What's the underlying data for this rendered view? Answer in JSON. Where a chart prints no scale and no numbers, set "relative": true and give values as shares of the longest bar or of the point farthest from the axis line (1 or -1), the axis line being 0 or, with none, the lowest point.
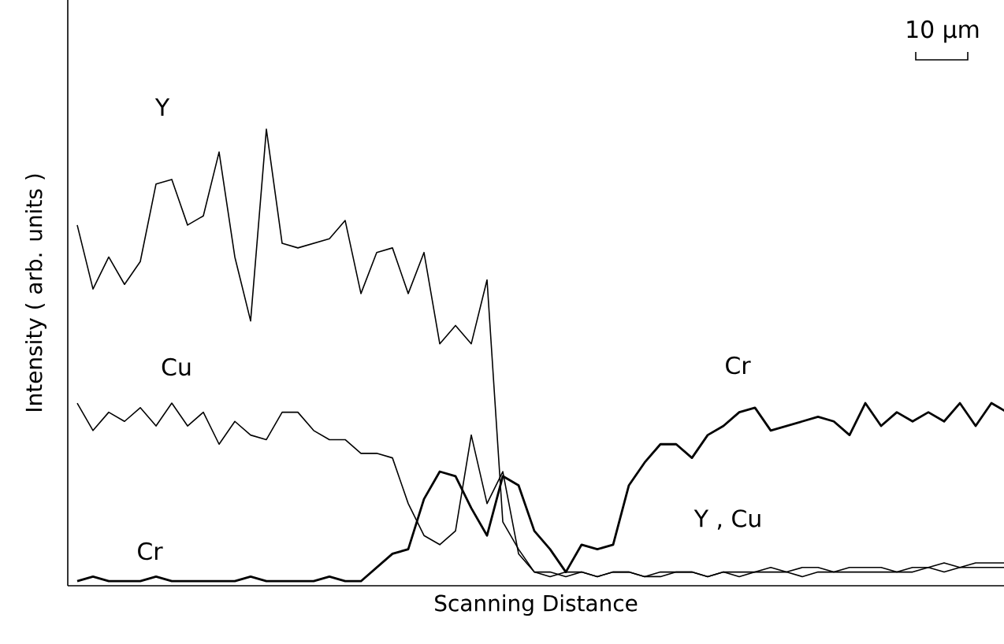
{
  "chart_data": {
    "type": "line",
    "relative": true,
    "xlabel": "Scanning Distance",
    "ylabel": "Intensity ( arb. units )",
    "categories": [
      null,
      null,
      null,
      null,
      null,
      null,
      null,
      null,
      null,
      null,
      null,
      null,
      null,
      null,
      null,
      null,
      null,
      null,
      null,
      null,
      null,
      null,
      null,
      null,
      null,
      null,
      null,
      null,
      null,
      null,
      null,
      null,
      null,
      null,
      null,
      null,
      null,
      null,
      null,
      null,
      null,
      null,
      null,
      null,
      null,
      null,
      null,
      null,
      null,
      null,
      null,
      null,
      null,
      null,
      null,
      null,
      null,
      null,
      null,
      null
    ],
    "series": [
      {
        "name": "Y",
        "color": "#000000",
        "values": [
          0.79,
          0.65,
          0.72,
          0.66,
          0.71,
          0.88,
          0.89,
          0.79,
          0.81,
          0.95,
          0.72,
          0.58,
          1.0,
          0.75,
          0.74,
          0.75,
          0.76,
          0.8,
          0.64,
          0.73,
          0.74,
          0.64,
          0.73,
          0.53,
          0.57,
          0.53,
          0.67,
          0.14,
          0.08,
          0.03,
          0.02,
          0.03,
          0.03,
          0.02,
          0.03,
          0.03,
          0.02,
          0.03,
          0.03,
          0.03,
          0.02,
          0.03,
          0.03,
          0.03,
          0.04,
          0.03,
          0.04,
          0.04,
          0.03,
          0.04,
          0.04,
          0.04,
          0.03,
          0.04,
          0.04,
          0.05,
          0.04,
          0.05,
          0.05,
          0.05
        ]
      },
      {
        "name": "Cu",
        "color": "#000000",
        "values": [
          0.4,
          0.34,
          0.38,
          0.36,
          0.39,
          0.35,
          0.4,
          0.35,
          0.38,
          0.31,
          0.36,
          0.33,
          0.32,
          0.38,
          0.38,
          0.34,
          0.32,
          0.32,
          0.29,
          0.29,
          0.28,
          0.18,
          0.11,
          0.09,
          0.12,
          0.33,
          0.18,
          0.25,
          0.07,
          0.03,
          0.03,
          0.02,
          0.03,
          0.02,
          0.03,
          0.03,
          0.02,
          0.02,
          0.03,
          0.03,
          0.02,
          0.03,
          0.02,
          0.03,
          0.03,
          0.03,
          0.02,
          0.03,
          0.03,
          0.03,
          0.03,
          0.03,
          0.03,
          0.03,
          0.04,
          0.03,
          0.04,
          0.04,
          0.04,
          0.04
        ]
      },
      {
        "name": "Cr",
        "color": "#000000",
        "values": [
          0.01,
          0.02,
          0.01,
          0.01,
          0.01,
          0.02,
          0.01,
          0.01,
          0.01,
          0.01,
          0.01,
          0.02,
          0.01,
          0.01,
          0.01,
          0.01,
          0.02,
          0.01,
          0.01,
          0.04,
          0.07,
          0.08,
          0.19,
          0.25,
          0.24,
          0.17,
          0.11,
          0.24,
          0.22,
          0.12,
          0.08,
          0.03,
          0.09,
          0.08,
          0.09,
          0.22,
          0.27,
          0.31,
          0.31,
          0.28,
          0.33,
          0.35,
          0.38,
          0.39,
          0.34,
          0.35,
          0.36,
          0.37,
          0.36,
          0.33,
          0.4,
          0.35,
          0.38,
          0.36,
          0.38,
          0.36,
          0.4,
          0.35,
          0.4,
          0.38
        ]
      }
    ],
    "annotations": [
      "Cr",
      "Y , Cu",
      "10 μm"
    ]
  }
}
